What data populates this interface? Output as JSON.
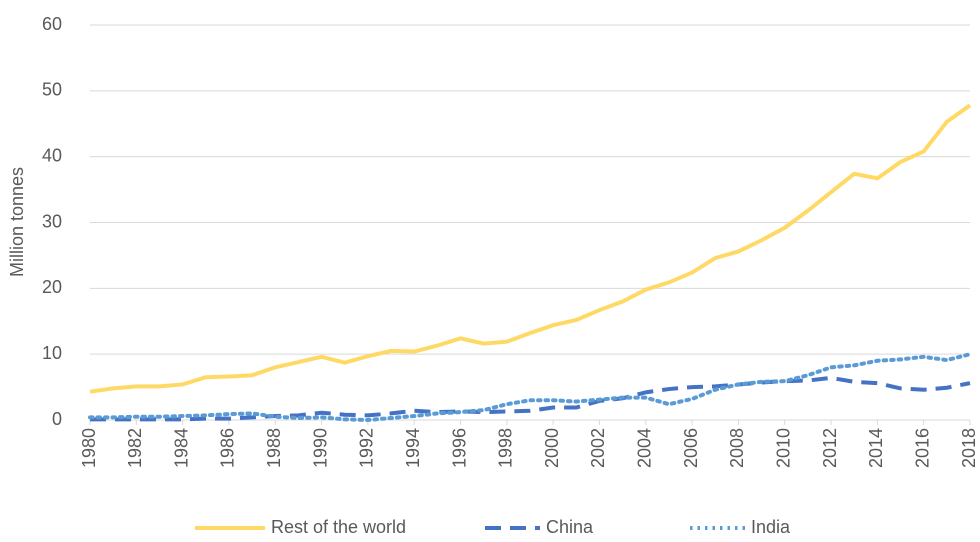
{
  "chart_data": {
    "type": "line",
    "y_label": "Million tonnes",
    "x": [
      1980,
      1981,
      1982,
      1983,
      1984,
      1985,
      1986,
      1987,
      1988,
      1989,
      1990,
      1991,
      1992,
      1993,
      1994,
      1995,
      1996,
      1997,
      1998,
      1999,
      2000,
      2001,
      2002,
      2003,
      2004,
      2005,
      2006,
      2007,
      2008,
      2009,
      2010,
      2011,
      2012,
      2013,
      2014,
      2015,
      2016,
      2017,
      2018
    ],
    "series": [
      {
        "name": "Rest of the world",
        "color": "#ffd966",
        "style": "solid",
        "values": [
          4.3,
          4.8,
          5.1,
          5.1,
          5.4,
          6.5,
          6.6,
          6.8,
          8.0,
          8.8,
          9.6,
          8.7,
          9.7,
          10.5,
          10.4,
          11.3,
          12.4,
          11.6,
          11.9,
          13.2,
          14.4,
          15.2,
          16.7,
          18.0,
          19.8,
          20.9,
          22.4,
          24.6,
          25.6,
          27.3,
          29.2,
          31.8,
          34.6,
          37.4,
          36.7,
          39.2,
          40.8,
          45.3,
          47.8
        ]
      },
      {
        "name": "China",
        "color": "#4472c4",
        "style": "dashed",
        "values": [
          0.1,
          0.1,
          0.1,
          0.1,
          0.1,
          0.2,
          0.2,
          0.4,
          0.6,
          0.7,
          1.1,
          0.8,
          0.7,
          1.0,
          1.4,
          1.2,
          1.3,
          1.2,
          1.3,
          1.4,
          1.9,
          1.9,
          2.9,
          3.3,
          4.2,
          4.7,
          5.0,
          5.1,
          5.4,
          5.7,
          5.9,
          6.0,
          6.4,
          5.8,
          5.6,
          4.8,
          4.6,
          4.9,
          5.6
        ]
      },
      {
        "name": "India",
        "color": "#5b9bd5",
        "style": "dotted",
        "values": [
          0.4,
          0.4,
          0.5,
          0.5,
          0.6,
          0.7,
          0.9,
          1.0,
          0.5,
          0.3,
          0.4,
          0.1,
          0.0,
          0.3,
          0.6,
          1.0,
          1.2,
          1.5,
          2.4,
          3.0,
          3.0,
          2.8,
          3.1,
          3.4,
          3.4,
          2.4,
          3.2,
          4.6,
          5.4,
          5.8,
          5.9,
          6.8,
          8.0,
          8.3,
          9.0,
          9.2,
          9.6,
          9.1,
          10.0
        ]
      }
    ],
    "xlim": [
      1980,
      2018
    ],
    "xticks": [
      1980,
      1982,
      1984,
      1986,
      1988,
      1990,
      1992,
      1994,
      1996,
      1998,
      2000,
      2002,
      2004,
      2006,
      2008,
      2010,
      2012,
      2014,
      2016,
      2018
    ],
    "ylim": [
      0,
      60
    ],
    "yticks": [
      0,
      10,
      20,
      30,
      40,
      50,
      60
    ],
    "grid": true,
    "legend": "bottom"
  }
}
